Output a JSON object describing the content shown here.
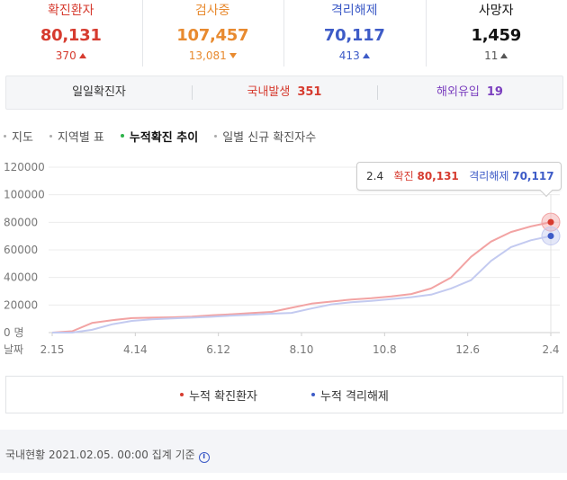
{
  "stats": [
    {
      "label": "확진환자",
      "value": "80,131",
      "change": "370",
      "direction": "up",
      "color": "#d63b2f"
    },
    {
      "label": "검사중",
      "value": "107,457",
      "change": "13,081",
      "direction": "down",
      "color": "#e88a2f"
    },
    {
      "label": "격리해제",
      "value": "70,117",
      "change": "413",
      "direction": "up",
      "color": "#3d5bc7"
    },
    {
      "label": "사망자",
      "value": "1,459",
      "change": "11",
      "direction": "up",
      "color": "#111111"
    }
  ],
  "breakdown": {
    "daily_label": "일일확진자",
    "domestic_label": "국내발생",
    "domestic_value": "351",
    "overseas_label": "해외유입",
    "overseas_value": "19"
  },
  "tabs": [
    "지도",
    "지역별 표",
    "누적확진 추이",
    "일별 신규 확진자수"
  ],
  "active_tab": 2,
  "tooltip": {
    "date": "2.4",
    "confirmed_label": "확진",
    "confirmed_value": "80,131",
    "released_label": "격리해제",
    "released_value": "70,117"
  },
  "legend": {
    "confirmed": "누적 확진환자",
    "released": "누적 격리해제"
  },
  "footer": {
    "text": "국내현황 2021.02.05. 00:00 집계 기준",
    "icon": "info-icon"
  },
  "chart_data": {
    "type": "line",
    "xlabel": "날짜",
    "x_ticks": [
      "2.15",
      "4.14",
      "6.12",
      "8.10",
      "10.8",
      "12.6",
      "2.4"
    ],
    "y_ticks": [
      "0 명",
      "20000",
      "40000",
      "60000",
      "80000",
      "100000",
      "120000"
    ],
    "ylim": [
      0,
      120000
    ],
    "grid": true,
    "series": [
      {
        "name": "누적 확진환자",
        "color": "#f2a3a3",
        "values": [
          28,
          1000,
          7000,
          9000,
          10500,
          10800,
          11100,
          11600,
          12500,
          13300,
          14200,
          15000,
          18000,
          21000,
          22500,
          24000,
          25000,
          26300,
          28000,
          32000,
          40000,
          55000,
          66000,
          73000,
          77000,
          80131
        ]
      },
      {
        "name": "누적 격리해제",
        "color": "#c3caf0",
        "values": [
          0,
          0,
          2000,
          6000,
          8500,
          9600,
          10300,
          10800,
          11500,
          12300,
          13000,
          13700,
          14300,
          17500,
          20500,
          22000,
          23000,
          24300,
          25700,
          27500,
          32000,
          38000,
          52000,
          62000,
          67000,
          70117
        ]
      }
    ]
  },
  "colors": {
    "confirmed": "#d63b2f",
    "testing": "#e88a2f",
    "released": "#3d5bc7",
    "deaths": "#111111",
    "domestic": "#d63b2f",
    "overseas": "#7b3fbf",
    "active_tab_dot": "#2eb34a"
  }
}
